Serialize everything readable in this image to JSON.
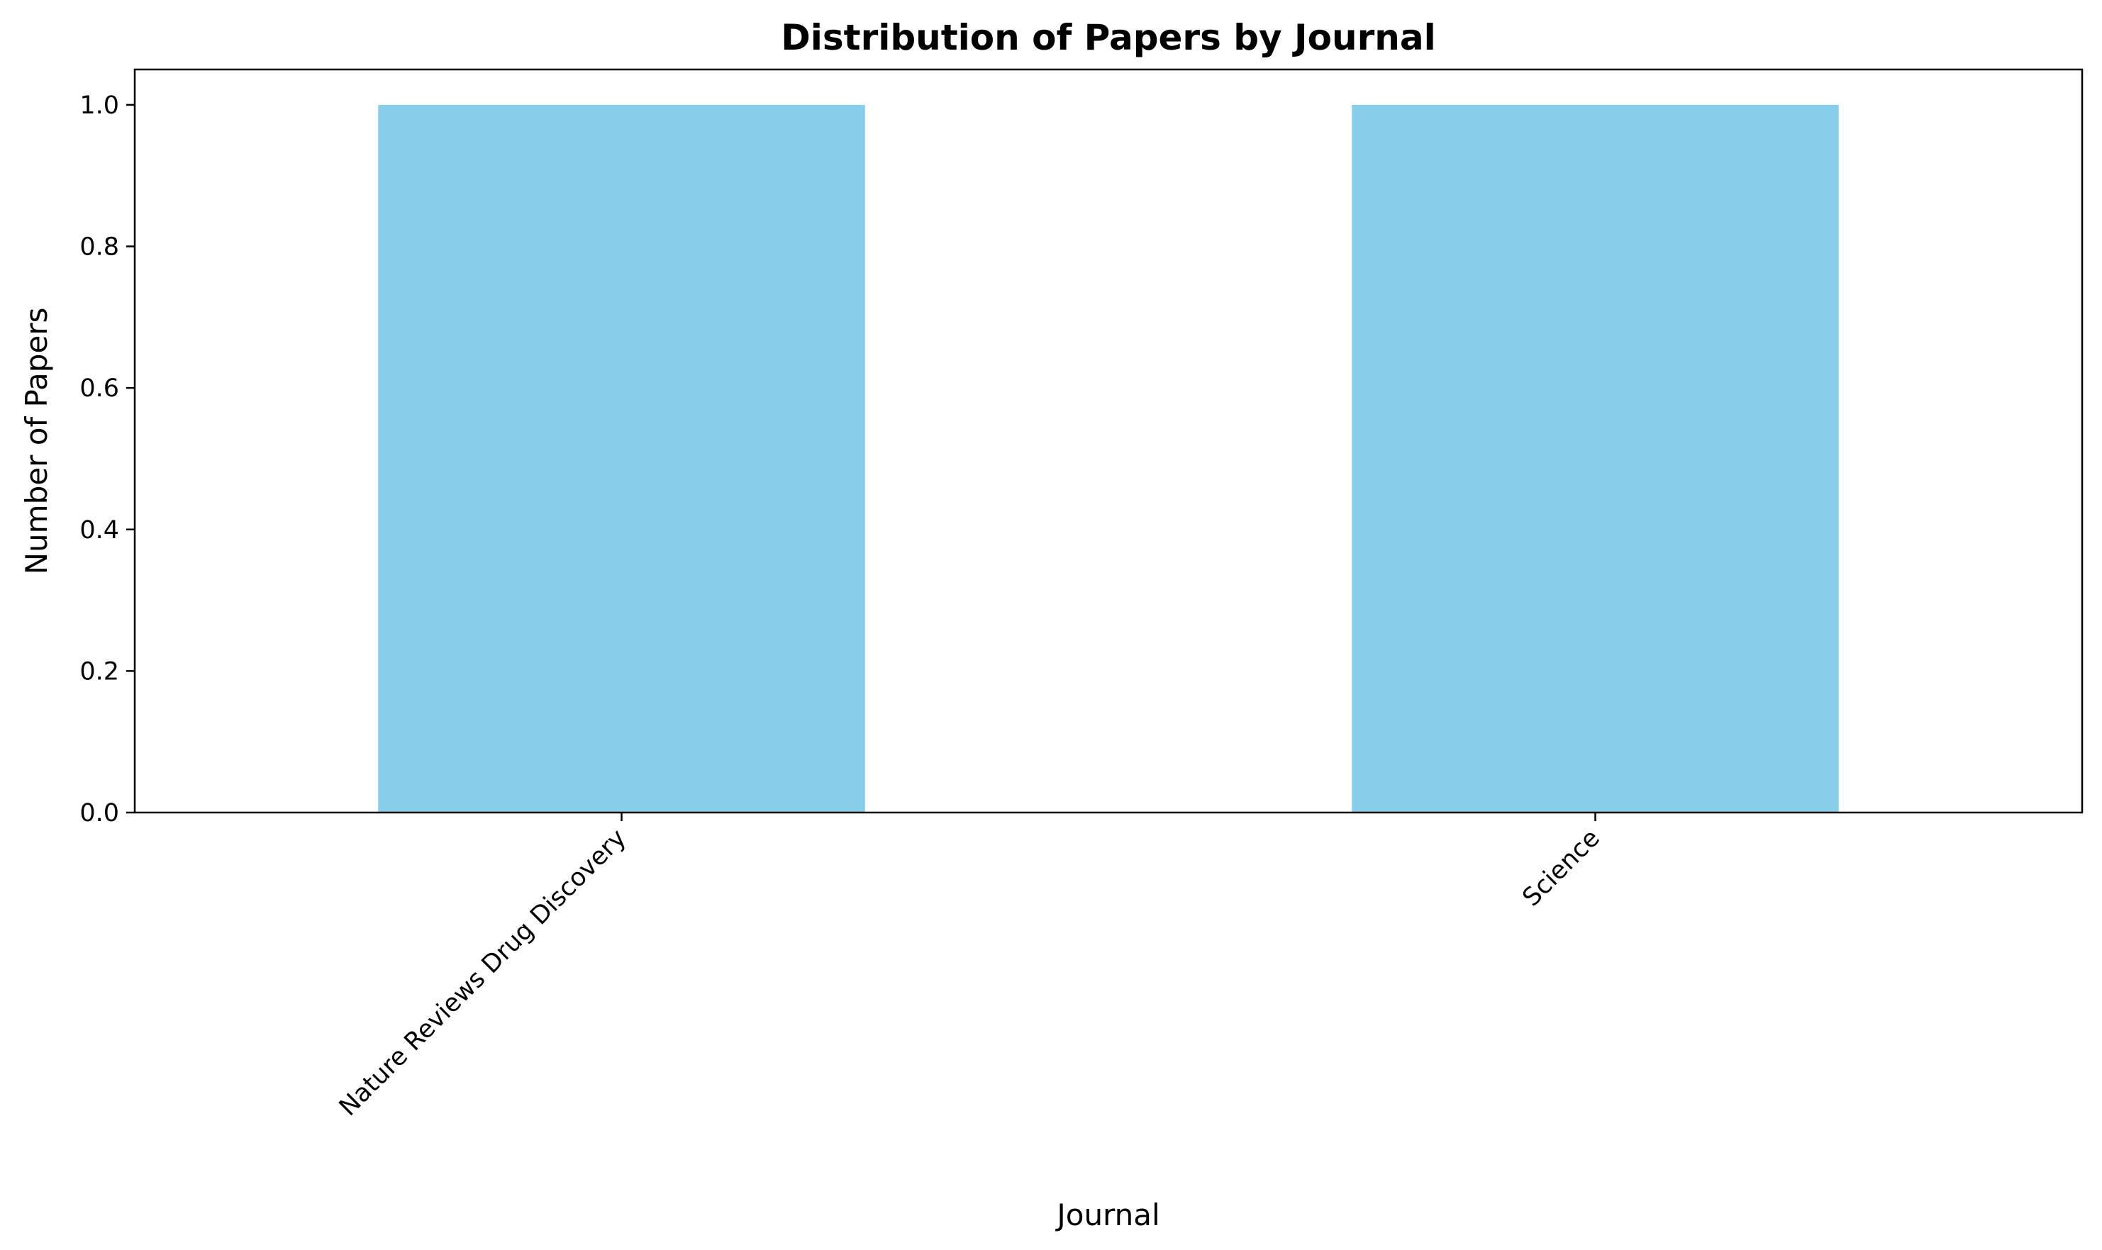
{
  "chart_data": {
    "type": "bar",
    "title": "Distribution of Papers by Journal",
    "xlabel": "Journal",
    "ylabel": "Number of Papers",
    "categories": [
      "Nature Reviews Drug Discovery",
      "Science"
    ],
    "values": [
      1,
      1
    ],
    "ylim": [
      0,
      1.05
    ],
    "yticks": [
      0.0,
      0.2,
      0.4,
      0.6,
      0.8,
      1.0
    ],
    "ytick_labels": [
      "0.0",
      "0.2",
      "0.4",
      "0.6",
      "0.8",
      "1.0"
    ],
    "grid": false,
    "legend": "none",
    "bar_color": "#87CEEB",
    "axis_color": "#000000"
  }
}
